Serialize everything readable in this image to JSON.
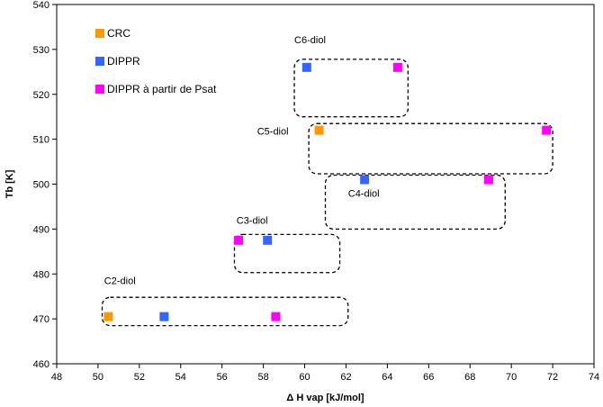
{
  "chart_data": {
    "type": "scatter",
    "title": "",
    "xlabel": "Δ H vap [kJ/mol]",
    "ylabel": "Tb [K]",
    "xlim": [
      48,
      74
    ],
    "ylim": [
      460,
      540
    ],
    "x_ticks": [
      "48",
      "50",
      "52",
      "54",
      "56",
      "58",
      "60",
      "62",
      "64",
      "66",
      "68",
      "70",
      "72",
      "74"
    ],
    "y_ticks": [
      "460",
      "470",
      "480",
      "490",
      "500",
      "510",
      "520",
      "530",
      "540"
    ],
    "grid": false,
    "legend_position": "top-left",
    "series": [
      {
        "name": "CRC",
        "color": "#FF9900",
        "points": [
          {
            "x": 50.5,
            "y": 470.5
          },
          {
            "x": 60.7,
            "y": 512.0
          }
        ]
      },
      {
        "name": "DIPPR",
        "color": "#3366FF",
        "points": [
          {
            "x": 53.2,
            "y": 470.5
          },
          {
            "x": 58.2,
            "y": 487.5
          },
          {
            "x": 62.9,
            "y": 501.0
          },
          {
            "x": 60.1,
            "y": 526.0
          }
        ]
      },
      {
        "name": "DIPPR à partir de Psat",
        "color": "#FF00FF",
        "points": [
          {
            "x": 58.6,
            "y": 470.5
          },
          {
            "x": 56.8,
            "y": 487.5
          },
          {
            "x": 68.9,
            "y": 501.0
          },
          {
            "x": 71.7,
            "y": 512.0
          },
          {
            "x": 64.5,
            "y": 526.0
          }
        ]
      }
    ],
    "groups": [
      {
        "label": "C2-diol",
        "x0": 50.2,
        "x1": 62.1,
        "y0": 468.5,
        "y1": 474.8,
        "lx": 50.3,
        "ly": 478.5
      },
      {
        "label": "C3-diol",
        "x0": 56.6,
        "x1": 61.7,
        "y0": 480.3,
        "y1": 488.8,
        "lx": 56.7,
        "ly": 492.0
      },
      {
        "label": "C4-diol",
        "x0": 61.0,
        "x1": 69.7,
        "y0": 490.0,
        "y1": 502.0,
        "lx": 62.1,
        "ly": 498.0
      },
      {
        "label": "C5-diol",
        "x0": 60.2,
        "x1": 72.0,
        "y0": 502.3,
        "y1": 513.5,
        "lx": 57.7,
        "ly": 511.8
      },
      {
        "label": "C6-diol",
        "x0": 59.5,
        "x1": 65.0,
        "y0": 515.0,
        "y1": 527.8,
        "lx": 59.5,
        "ly": 532.2
      }
    ]
  }
}
